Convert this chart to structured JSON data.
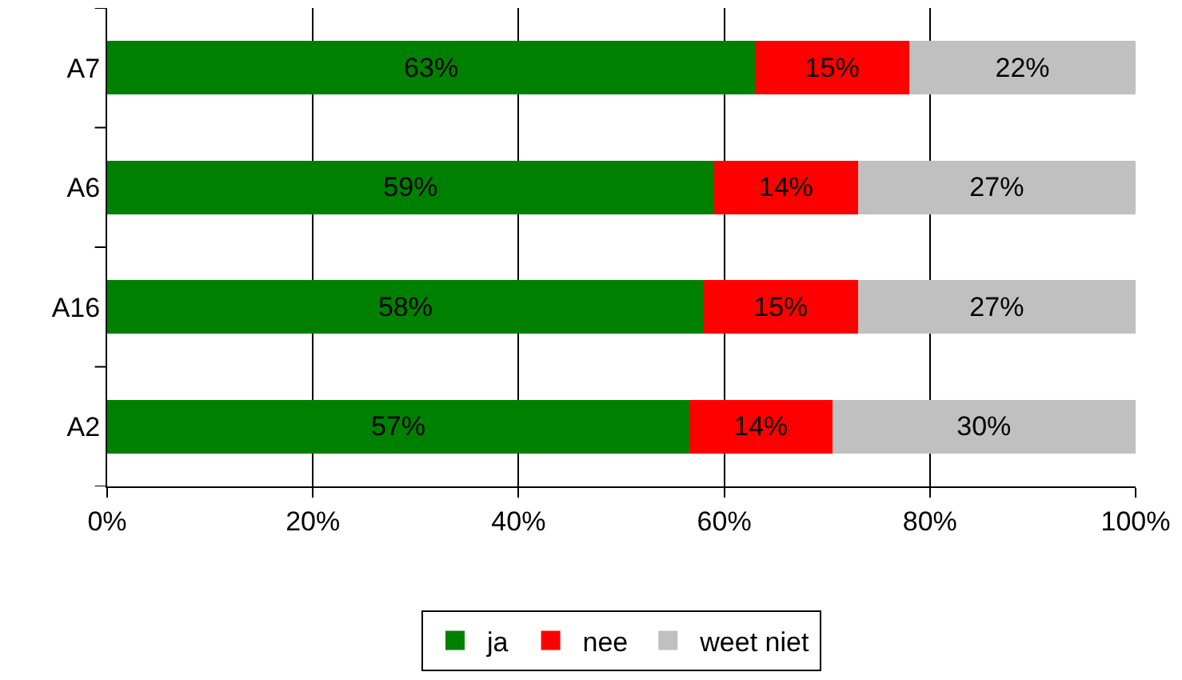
{
  "chart_data": {
    "type": "bar",
    "orientation": "horizontal",
    "stacked": true,
    "categories": [
      "A7",
      "A6",
      "A16",
      "A2"
    ],
    "series": [
      {
        "name": "ja",
        "color": "#008000",
        "values": [
          63,
          59,
          58,
          56.6
        ],
        "value_labels": [
          "63%",
          "59%",
          "58%",
          "57%"
        ]
      },
      {
        "name": "nee",
        "color": "#ff0000",
        "values": [
          15,
          14,
          15,
          13.9
        ],
        "value_labels": [
          "15%",
          "14%",
          "15%",
          "14%"
        ]
      },
      {
        "name": "weet niet",
        "color": "#c0c0c0",
        "values": [
          22,
          27,
          27,
          29.5
        ],
        "value_labels": [
          "22%",
          "27%",
          "27%",
          "30%"
        ]
      }
    ],
    "xlim": [
      0,
      100
    ],
    "xticks": [
      {
        "value": 0,
        "label": "0%"
      },
      {
        "value": 20,
        "label": "20%"
      },
      {
        "value": 40,
        "label": "40%"
      },
      {
        "value": 60,
        "label": "60%"
      },
      {
        "value": 80,
        "label": "80%"
      },
      {
        "value": 100,
        "label": "100%"
      }
    ],
    "grid": "x",
    "legend": "bottom"
  }
}
